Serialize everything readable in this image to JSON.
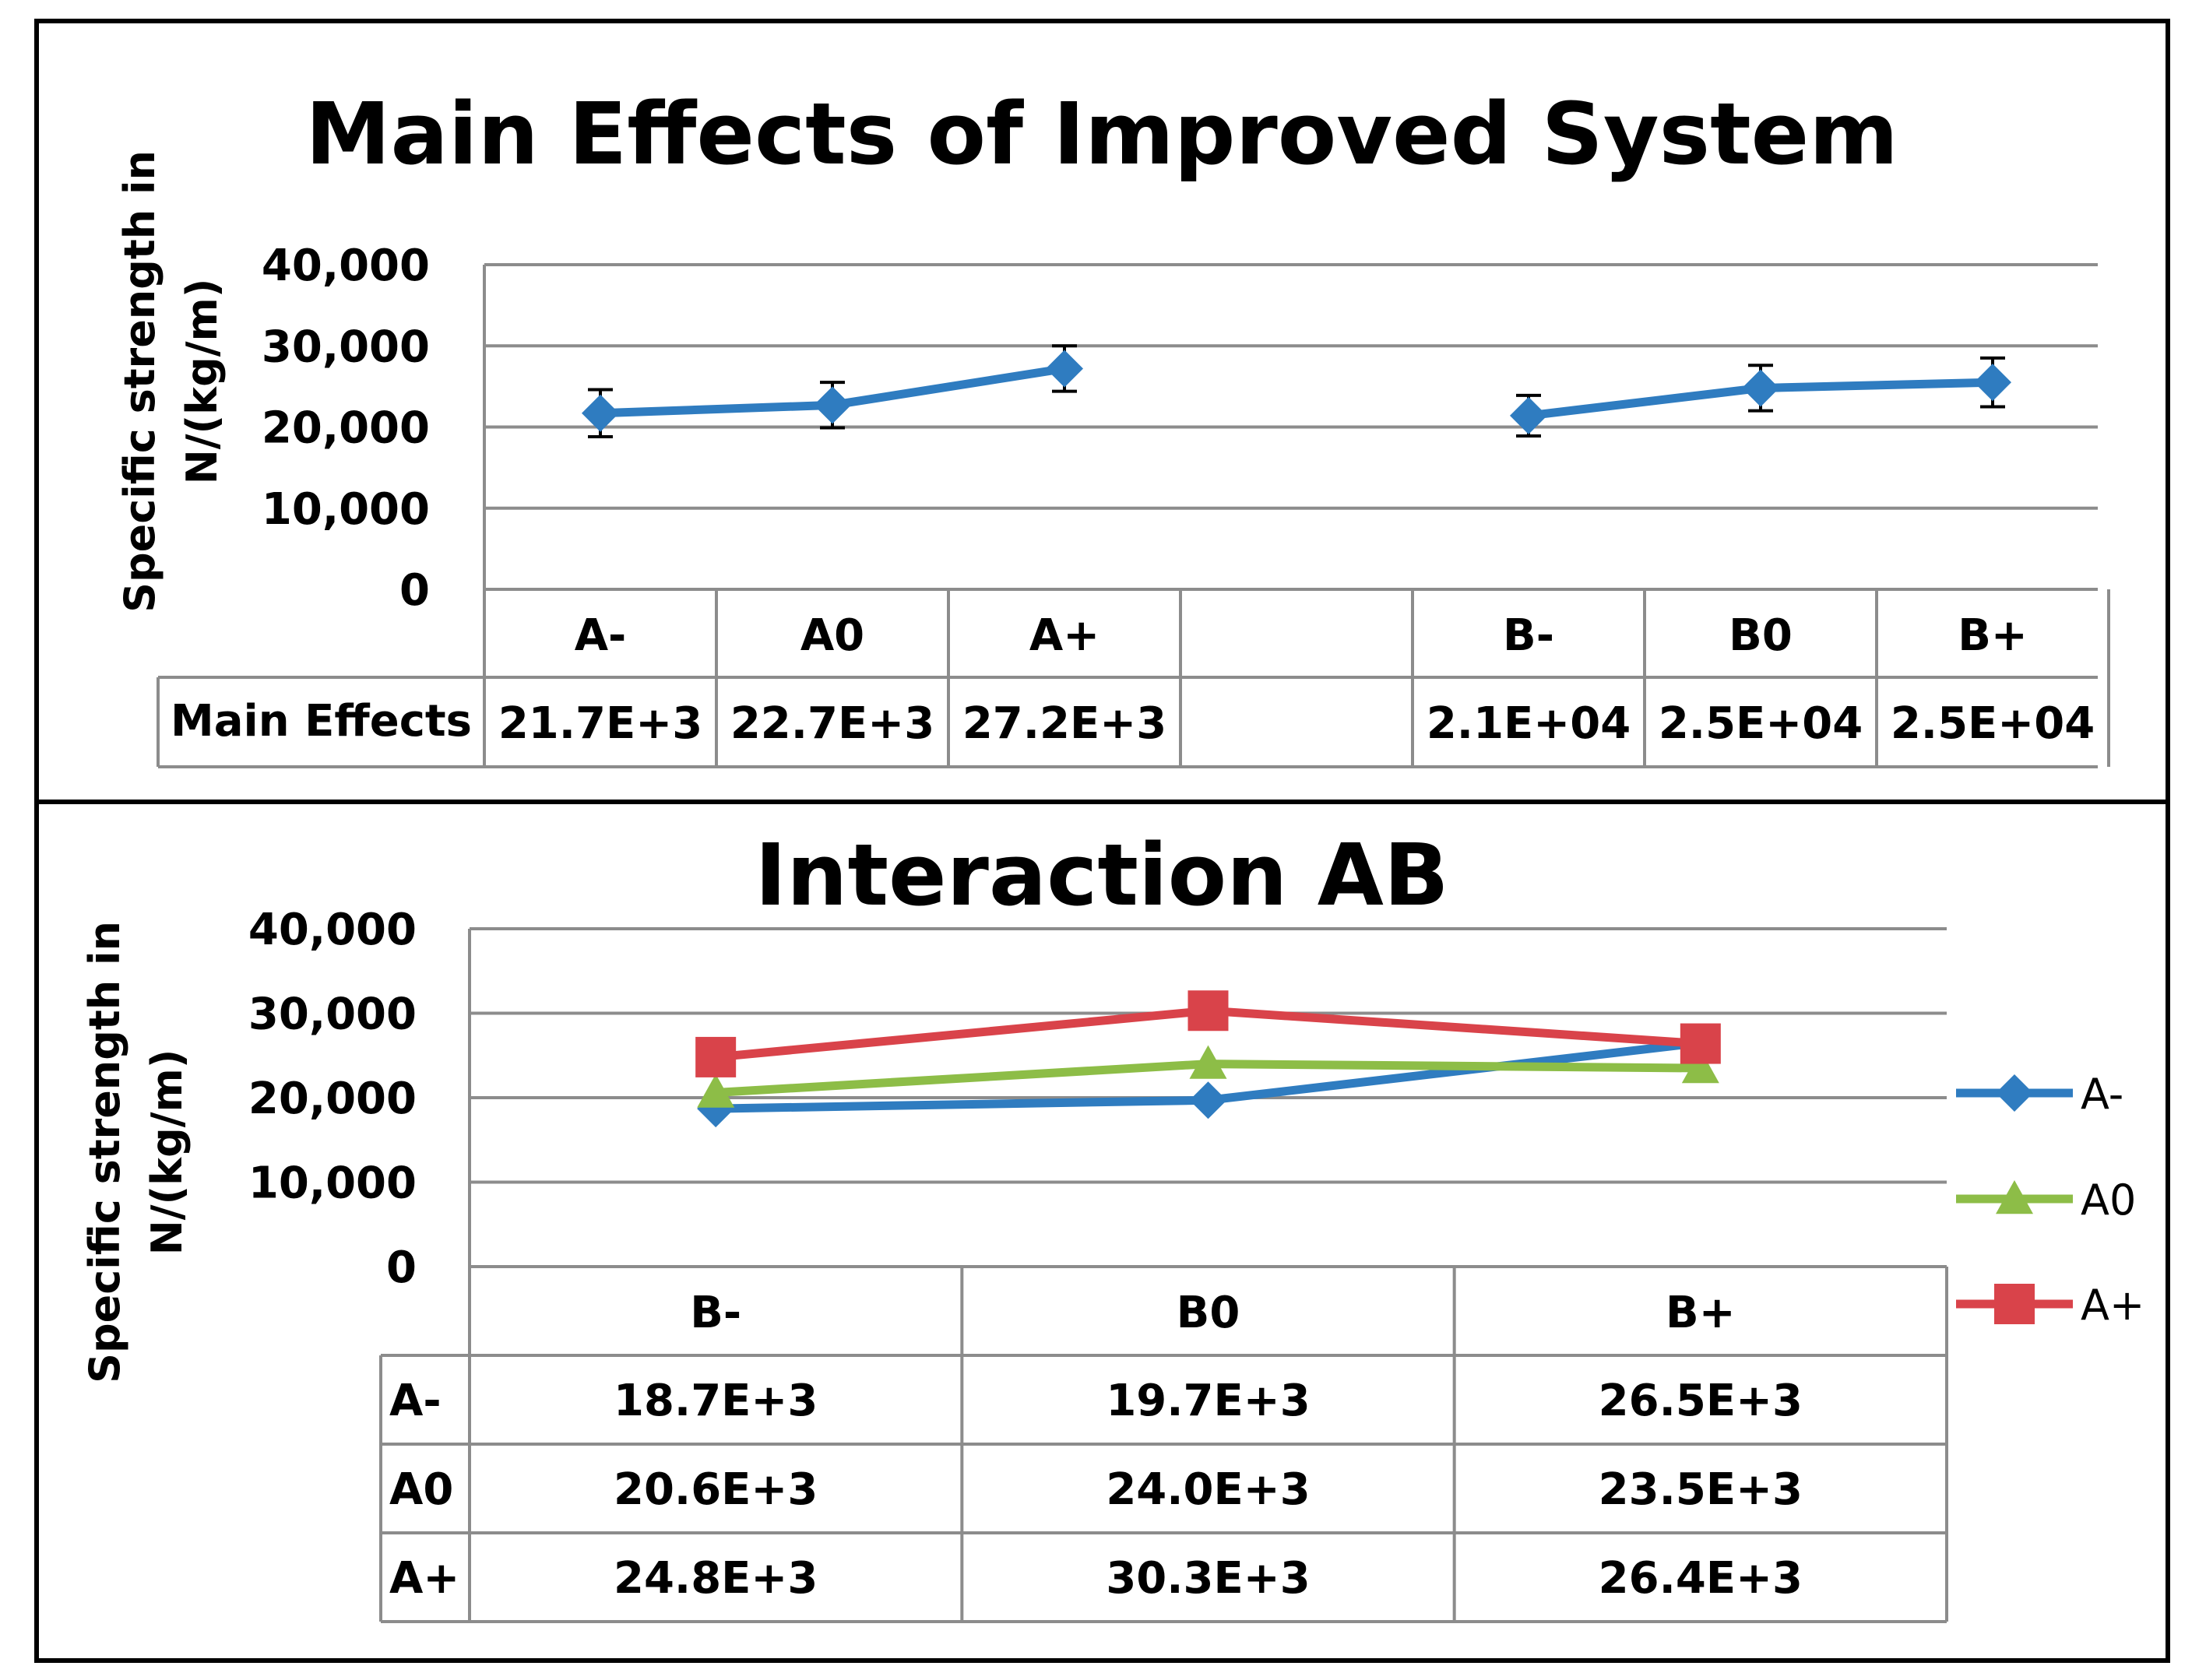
{
  "chart_data": [
    {
      "type": "line",
      "title": "Main Effects of Improved System",
      "ylabel_line1": "Specific strength in",
      "ylabel_line2": "N/(kg/m)",
      "ylim": [
        0,
        40000
      ],
      "yticks": [
        {
          "value": 0,
          "label": "0"
        },
        {
          "value": 10000,
          "label": "10,000"
        },
        {
          "value": 20000,
          "label": "20,000"
        },
        {
          "value": 30000,
          "label": "30,000"
        },
        {
          "value": 40000,
          "label": "40,000"
        }
      ],
      "categories": [
        "A-",
        "A0",
        "A+",
        "",
        "B-",
        "B0",
        "B+"
      ],
      "series": [
        {
          "name": "Main Effects",
          "color": "#2f7cc0",
          "marker": "diamond",
          "segments": [
            {
              "values": [
                21700,
                22700,
                27200
              ],
              "error": [
                2900,
                2800,
                2800
              ]
            },
            {
              "values": [
                21400,
                24800,
                25500
              ],
              "error": [
                2500,
                2800,
                3000
              ]
            }
          ]
        }
      ],
      "table": {
        "row_label": "Main Effects",
        "cells": [
          "21.7E+3",
          "22.7E+3",
          "27.2E+3",
          "",
          "2.1E+04",
          "2.5E+04",
          "2.5E+04"
        ]
      }
    },
    {
      "type": "line",
      "title": "Interaction AB",
      "ylabel_line1": "Specific strength in",
      "ylabel_line2": "N/(kg/m)",
      "ylim": [
        0,
        40000
      ],
      "yticks": [
        {
          "value": 0,
          "label": "0"
        },
        {
          "value": 10000,
          "label": "10,000"
        },
        {
          "value": 20000,
          "label": "20,000"
        },
        {
          "value": 30000,
          "label": "30,000"
        },
        {
          "value": 40000,
          "label": "40,000"
        }
      ],
      "categories": [
        "B-",
        "B0",
        "B+"
      ],
      "series": [
        {
          "name": "A-",
          "color": "#2f7cc0",
          "marker": "diamond",
          "values": [
            18700,
            19700,
            26500
          ],
          "labels": [
            "18.7E+3",
            "19.7E+3",
            "26.5E+3"
          ]
        },
        {
          "name": "A0",
          "color": "#8dbd47",
          "marker": "triangle",
          "values": [
            20600,
            24000,
            23500
          ],
          "labels": [
            "20.6E+3",
            "24.0E+3",
            "23.5E+3"
          ]
        },
        {
          "name": "A+",
          "color": "#d9434a",
          "marker": "square",
          "values": [
            24800,
            30300,
            26400
          ],
          "labels": [
            "24.8E+3",
            "30.3E+3",
            "26.4E+3"
          ]
        }
      ],
      "legend_position": "right"
    }
  ]
}
